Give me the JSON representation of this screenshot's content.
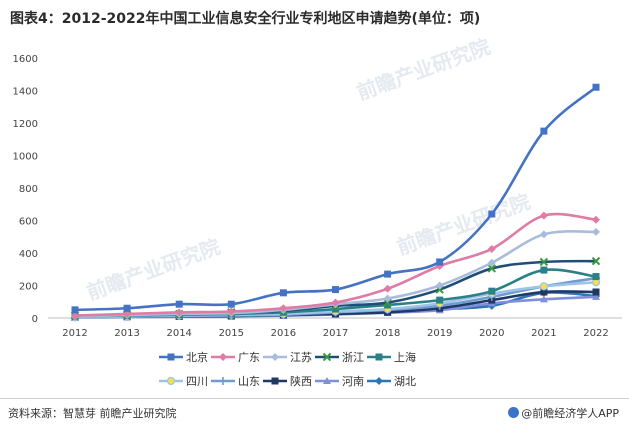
{
  "title": "图表4：2012-2022年中国工业信息安全行业专利地区申请趋势(单位：项)",
  "source": "资料来源：智慧芽 前瞻产业研究院",
  "brand": "@前瞻经济学人APP",
  "watermark": "前瞻产业研究院",
  "chart_data": {
    "type": "line",
    "title": "图表4：2012-2022年中国工业信息安全行业专利地区申请趋势(单位：项)",
    "xlabel": "",
    "ylabel": "",
    "ylim": [
      0,
      1600
    ],
    "yticks": [
      "0",
      "200",
      "400",
      "600",
      "800",
      "1000",
      "1200",
      "1400",
      "1600"
    ],
    "x": [
      "2012",
      "2013",
      "2014",
      "2015",
      "2016",
      "2017",
      "2018",
      "2019",
      "2020",
      "2021",
      "2022"
    ],
    "grid": false,
    "legend_position": "bottom",
    "series": [
      {
        "name": "北京",
        "color": "#4472c4",
        "marker": "square",
        "values": [
          50,
          60,
          85,
          85,
          155,
          175,
          270,
          345,
          640,
          1150,
          1420
        ]
      },
      {
        "name": "广东",
        "color": "#e07ba6",
        "marker": "diamond",
        "values": [
          15,
          25,
          35,
          40,
          60,
          95,
          180,
          320,
          425,
          630,
          605
        ]
      },
      {
        "name": "江苏",
        "color": "#a9bcdc",
        "marker": "diamond",
        "values": [
          10,
          18,
          25,
          30,
          50,
          85,
          120,
          200,
          340,
          515,
          530
        ]
      },
      {
        "name": "浙江",
        "color": "#1f4e79",
        "marker": "x",
        "values": [
          15,
          20,
          25,
          35,
          45,
          75,
          95,
          175,
          305,
          345,
          350
        ]
      },
      {
        "name": "上海",
        "color": "#2a8088",
        "marker": "square",
        "values": [
          10,
          15,
          20,
          25,
          35,
          55,
          80,
          110,
          165,
          295,
          255
        ]
      },
      {
        "name": "四川",
        "color": "#9dc3e6",
        "marker": "circle",
        "values": [
          5,
          10,
          15,
          20,
          25,
          40,
          55,
          90,
          150,
          195,
          220
        ]
      },
      {
        "name": "山东",
        "color": "#6f9bd1",
        "marker": "plus",
        "values": [
          5,
          8,
          12,
          15,
          20,
          35,
          50,
          75,
          130,
          195,
          245
        ]
      },
      {
        "name": "陕西",
        "color": "#1f3864",
        "marker": "square",
        "values": [
          5,
          8,
          10,
          12,
          18,
          25,
          35,
          60,
          110,
          160,
          160
        ]
      },
      {
        "name": "河南",
        "color": "#7f8fdb",
        "marker": "triangle",
        "values": [
          3,
          5,
          8,
          10,
          14,
          22,
          32,
          48,
          90,
          115,
          130
        ]
      },
      {
        "name": "湖北",
        "color": "#2e75b6",
        "marker": "diamond",
        "values": [
          5,
          8,
          12,
          15,
          20,
          28,
          40,
          55,
          75,
          155,
          135
        ]
      }
    ]
  }
}
